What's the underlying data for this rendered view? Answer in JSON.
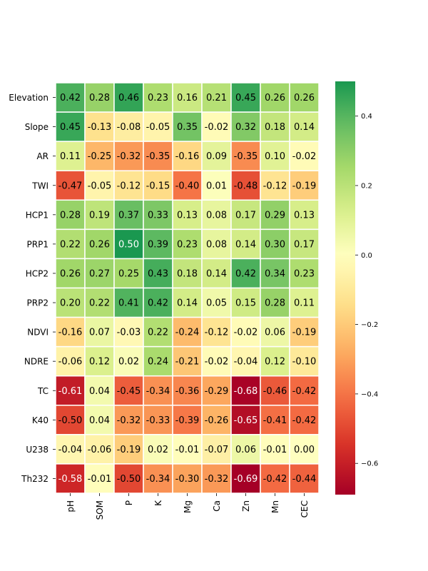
{
  "chart_data": {
    "type": "heatmap",
    "title": "",
    "xlabel": "",
    "ylabel": "",
    "columns": [
      "pH",
      "SOM",
      "P",
      "K",
      "Mg",
      "Ca",
      "Zn",
      "Mn",
      "CEC"
    ],
    "rows": [
      "Elevation",
      "Slope",
      "AR",
      "TWI",
      "HCP1",
      "PRP1",
      "HCP2",
      "PRP2",
      "NDVI",
      "NDRE",
      "TC",
      "K40",
      "U238",
      "Th232"
    ],
    "values": [
      [
        0.42,
        0.28,
        0.46,
        0.23,
        0.16,
        0.21,
        0.45,
        0.26,
        0.26
      ],
      [
        0.45,
        -0.13,
        -0.08,
        -0.05,
        0.35,
        -0.02,
        0.32,
        0.18,
        0.14
      ],
      [
        0.11,
        -0.25,
        -0.32,
        -0.35,
        -0.16,
        0.09,
        -0.35,
        0.1,
        -0.02
      ],
      [
        -0.47,
        -0.05,
        -0.12,
        -0.15,
        -0.4,
        0.01,
        -0.48,
        -0.12,
        -0.19
      ],
      [
        0.28,
        0.19,
        0.37,
        0.33,
        0.13,
        0.08,
        0.17,
        0.29,
        0.13
      ],
      [
        0.22,
        0.26,
        0.5,
        0.39,
        0.23,
        0.08,
        0.14,
        0.3,
        0.17
      ],
      [
        0.26,
        0.27,
        0.25,
        0.43,
        0.18,
        0.14,
        0.42,
        0.34,
        0.23
      ],
      [
        0.2,
        0.22,
        0.41,
        0.42,
        0.14,
        0.05,
        0.15,
        0.28,
        0.11
      ],
      [
        -0.16,
        0.07,
        -0.03,
        0.22,
        -0.24,
        -0.12,
        -0.02,
        0.06,
        -0.19
      ],
      [
        -0.06,
        0.12,
        0.02,
        0.24,
        -0.21,
        -0.02,
        -0.04,
        0.12,
        -0.1
      ],
      [
        -0.61,
        0.04,
        -0.45,
        -0.34,
        -0.36,
        -0.29,
        -0.68,
        -0.46,
        -0.42
      ],
      [
        -0.5,
        0.04,
        -0.32,
        -0.33,
        -0.39,
        -0.26,
        -0.65,
        -0.41,
        -0.42
      ],
      [
        -0.04,
        -0.06,
        -0.19,
        0.02,
        -0.01,
        -0.07,
        0.06,
        -0.01,
        0.0
      ],
      [
        -0.58,
        -0.01,
        -0.5,
        -0.34,
        -0.3,
        -0.32,
        -0.69,
        -0.42,
        -0.44
      ]
    ],
    "colormap": "RdYlGn",
    "vmin": -0.69,
    "vmax": 0.5,
    "colorbar_ticks": [
      0.4,
      0.2,
      0.0,
      -0.2,
      -0.4,
      -0.6
    ],
    "colorbar_tick_labels": [
      "0.4",
      "0.2",
      "0.0",
      "−0.2",
      "−0.4",
      "−0.6"
    ],
    "annotation_format": "0.00",
    "grid": false,
    "legend": "colorbar-right"
  }
}
